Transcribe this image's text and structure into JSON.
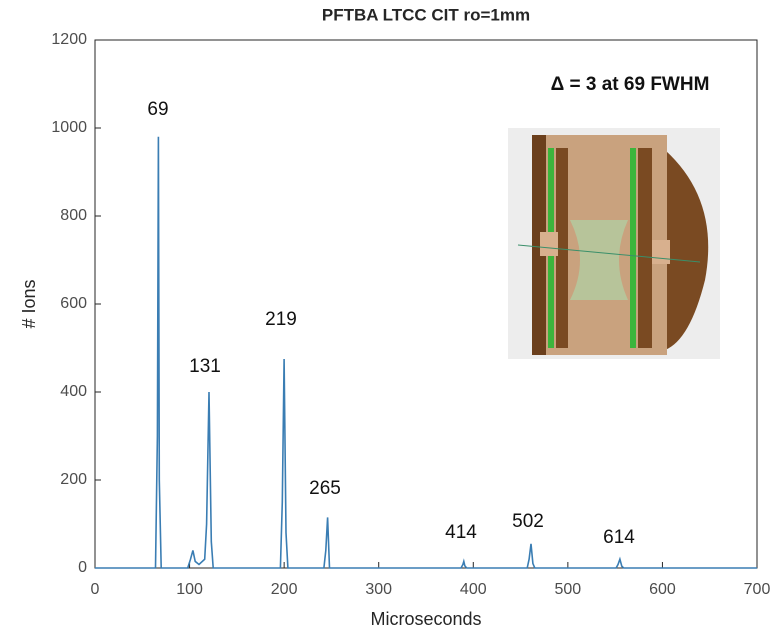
{
  "chart_data": {
    "type": "line",
    "title": "PFTBA LTCC CIT ro=1mm",
    "xlabel": "Microseconds",
    "ylabel": "# Ions",
    "annotations": [
      "Δ = 3 at 69 FWHM",
      "69",
      "131",
      "219",
      "265",
      "414",
      "502",
      "614"
    ],
    "series": [
      {
        "color": "#3a7db3",
        "x": [
          0,
          64,
          66,
          67,
          68,
          70,
          98,
          101,
          103.5,
          106,
          110,
          116,
          118,
          120.5,
          123,
          125,
          196,
          198,
          200,
          202,
          204,
          242,
          244,
          246,
          248,
          387,
          389,
          390,
          391,
          393,
          457,
          459,
          461,
          463,
          465,
          551,
          553,
          555,
          557,
          559,
          700
        ],
        "values": [
          0,
          0,
          300,
          980,
          200,
          0,
          0,
          20,
          40,
          15,
          8,
          20,
          100,
          400,
          60,
          0,
          0,
          150,
          475,
          80,
          0,
          0,
          40,
          115,
          0,
          0,
          8,
          15,
          5,
          0,
          0,
          20,
          55,
          10,
          0,
          0,
          8,
          20,
          4,
          0,
          0
        ]
      }
    ],
    "xlim": [
      0,
      700
    ],
    "xticks": [
      0,
      100,
      200,
      300,
      400,
      500,
      600,
      700
    ],
    "ylim": [
      0,
      1200
    ],
    "yticks": [
      0,
      200,
      400,
      600,
      800,
      1000,
      1200
    ],
    "grid": false
  }
}
